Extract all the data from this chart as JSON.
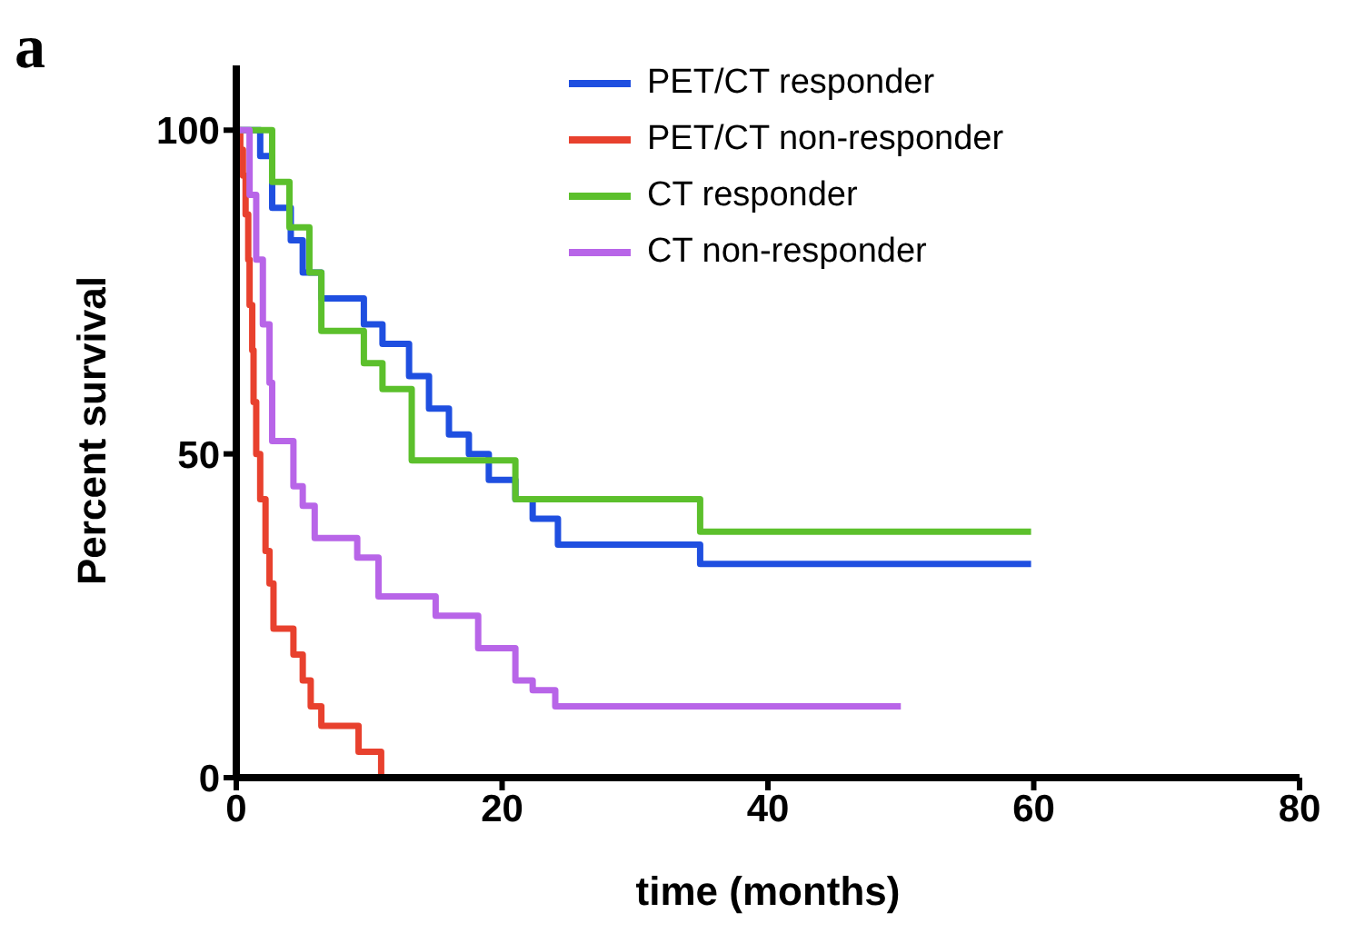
{
  "chart_data": {
    "type": "step",
    "title": "a",
    "xlabel": "time (months)",
    "ylabel": "Percent survival",
    "xlim": [
      0,
      80
    ],
    "xticks": [
      0,
      20,
      40,
      60,
      80
    ],
    "ylim": [
      0,
      110
    ],
    "yticks": [
      0,
      50,
      100
    ],
    "grid": false,
    "legend": "top right",
    "marker": "none",
    "line_style": "solid",
    "series": [
      {
        "name": "PET/CT responder",
        "color": "#1f4fe0",
        "x": [
          0,
          1.8,
          2.7,
          4.1,
          5,
          6.4,
          9.6,
          11,
          13,
          14.5,
          16,
          17.5,
          19,
          21,
          22.3,
          24.2,
          34.9,
          59.8
        ],
        "values": [
          100,
          96,
          88,
          83,
          78,
          74,
          70,
          67,
          62,
          57,
          53,
          50,
          46,
          43,
          40,
          36,
          33,
          33
        ]
      },
      {
        "name": "PET/CT non-responder",
        "color": "#e8412e",
        "x": [
          0,
          0.3,
          0.5,
          0.7,
          0.9,
          1,
          1.2,
          1.3,
          1.5,
          1.8,
          2.2,
          2.5,
          2.8,
          4.3,
          5,
          5.6,
          6.4,
          9.2,
          10.9
        ],
        "values": [
          100,
          97,
          93,
          87,
          80,
          73,
          66,
          58,
          50,
          43,
          35,
          30,
          23,
          19,
          15,
          11,
          8,
          4,
          0
        ]
      },
      {
        "name": "CT responder",
        "color": "#5cc02c",
        "x": [
          0,
          2.7,
          4,
          5.5,
          6.4,
          9.6,
          11,
          13.2,
          21,
          34.9,
          59.8
        ],
        "values": [
          100,
          92,
          85,
          78,
          69,
          64,
          60,
          49,
          43,
          38,
          38
        ]
      },
      {
        "name": "CT non-responder",
        "color": "#b865e8",
        "x": [
          0,
          1,
          1.5,
          2,
          2.5,
          2.7,
          4.3,
          5,
          5.9,
          9.1,
          10.7,
          15,
          18.2,
          21,
          22.3,
          24,
          50
        ],
        "values": [
          100,
          90,
          80,
          70,
          61,
          52,
          45,
          42,
          37,
          34,
          28,
          25,
          20,
          15,
          13.5,
          11,
          11
        ]
      }
    ]
  }
}
